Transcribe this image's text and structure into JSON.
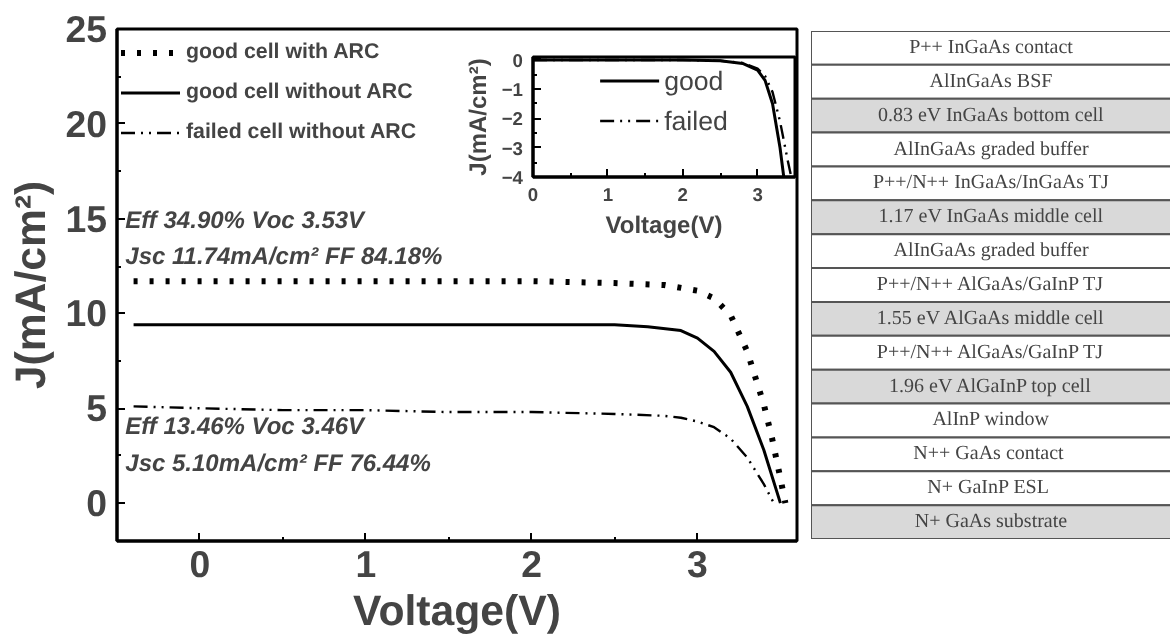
{
  "chart_data": [
    {
      "type": "line",
      "xlabel": "Voltage(V)",
      "ylabel": "J(mA/cm²)",
      "xlim": [
        -0.5,
        3.6
      ],
      "ylim": [
        -2,
        25
      ],
      "xticks": [
        0,
        1,
        2,
        3
      ],
      "yticks": [
        0,
        5,
        10,
        15,
        20,
        25
      ],
      "legend": "top left",
      "grid": false,
      "series": [
        {
          "name": "good cell with ARC",
          "color": "#000000",
          "line_style": "dotted",
          "x": [
            -0.4,
            0,
            0.5,
            1,
            1.5,
            2,
            2.5,
            2.8,
            3.0,
            3.1,
            3.2,
            3.3,
            3.4,
            3.45,
            3.5,
            3.53
          ],
          "values": [
            11.7,
            11.7,
            11.7,
            11.7,
            11.7,
            11.7,
            11.6,
            11.5,
            11.2,
            10.8,
            9.9,
            8.0,
            5.2,
            3.4,
            1.3,
            0
          ]
        },
        {
          "name": "good cell without ARC",
          "color": "#000000",
          "line_style": "solid",
          "x": [
            -0.4,
            0,
            0.5,
            1,
            1.5,
            2,
            2.5,
            2.7,
            2.9,
            3.0,
            3.1,
            3.2,
            3.3,
            3.4,
            3.5
          ],
          "values": [
            9.4,
            9.4,
            9.4,
            9.4,
            9.4,
            9.4,
            9.4,
            9.3,
            9.1,
            8.7,
            8.0,
            6.9,
            5.1,
            2.8,
            0
          ]
        },
        {
          "name": "failed cell without ARC",
          "color": "#000000",
          "line_style": "dashdot",
          "x": [
            -0.4,
            0,
            0.5,
            1,
            1.5,
            2,
            2.5,
            2.8,
            2.9,
            3.0,
            3.1,
            3.2,
            3.3,
            3.4,
            3.46
          ],
          "values": [
            5.1,
            5.0,
            4.9,
            4.9,
            4.8,
            4.8,
            4.7,
            4.6,
            4.5,
            4.3,
            4.0,
            3.4,
            2.4,
            1.0,
            0
          ]
        }
      ],
      "annotations": [
        "Eff 34.90%    Voc 3.53V",
        "Jsc 11.74mA/cm²    FF 84.18%",
        "Eff 13.46%    Voc 3.46V",
        "Jsc 5.10mA/cm²    FF 76.44%"
      ]
    },
    {
      "type": "line",
      "xlabel": "Voltage(V)",
      "ylabel": "J(mA/cm²)",
      "xlim": [
        0,
        3.5
      ],
      "ylim": [
        -4,
        0.1
      ],
      "xticks": [
        0,
        1,
        2,
        3
      ],
      "yticks": [
        0,
        -1,
        -2,
        -3,
        -4
      ],
      "legend": "top",
      "grid": false,
      "series": [
        {
          "name": "good",
          "color": "#000000",
          "line_style": "solid",
          "x": [
            0,
            0.5,
            1,
            1.5,
            2,
            2.5,
            2.8,
            3.0,
            3.1,
            3.2,
            3.3,
            3.35
          ],
          "values": [
            0,
            0,
            0,
            0,
            0,
            -0.03,
            -0.12,
            -0.35,
            -0.7,
            -1.5,
            -3.0,
            -4.0
          ]
        },
        {
          "name": "failed",
          "color": "#000000",
          "line_style": "dashdot",
          "x": [
            0,
            0.5,
            1,
            1.5,
            2,
            2.5,
            2.8,
            3.0,
            3.1,
            3.2,
            3.3,
            3.4,
            3.45
          ],
          "values": [
            0,
            0,
            0,
            0,
            0,
            -0.03,
            -0.1,
            -0.3,
            -0.55,
            -1.1,
            -2.1,
            -3.4,
            -4.0
          ]
        }
      ]
    },
    {
      "type": "other",
      "categories": [
        "P++ InGaAs contact",
        "AlInGaAs BSF",
        "0.83 eV InGaAs bottom cell",
        "AlInGaAs graded buffer",
        "P++/N++ InGaAs/InGaAs TJ",
        "1.17 eV InGaAs middle cell",
        "AlInGaAs graded buffer",
        "P++/N++ AlGaAs/GaInP TJ",
        "1.55 eV AlGaAs middle cell",
        "P++/N++ AlGaAs/GaInP TJ",
        "1.96 eV AlGaInP top cell",
        "AlInP window",
        "N++  GaAs contact",
        "N+  GaInP ESL",
        "N+ GaAs substrate"
      ],
      "colors": [
        "#ffffff",
        "#ffffff",
        "#d9d9d9",
        "#ffffff",
        "#ffffff",
        "#d9d9d9",
        "#ffffff",
        "#ffffff",
        "#d9d9d9",
        "#ffffff",
        "#d9d9d9",
        "#ffffff",
        "#ffffff",
        "#ffffff",
        "#d9d9d9"
      ]
    }
  ]
}
